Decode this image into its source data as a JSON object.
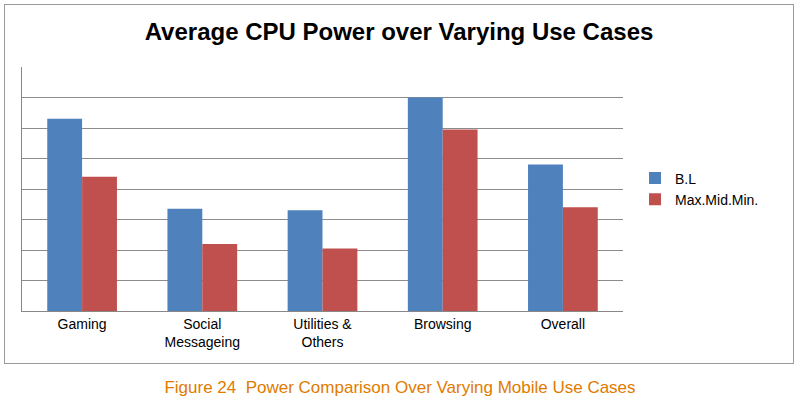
{
  "chart_data": {
    "type": "bar",
    "title": "Average CPU Power over Varying Use Cases",
    "caption": "Figure 24  Power Comparison Over Varying Mobile Use Cases",
    "categories": [
      "Gaming",
      "Social Messageing",
      "Utilities & Others",
      "Browsing",
      "Overall"
    ],
    "series": [
      {
        "name": "B.L",
        "color": "#4f81bd",
        "values": [
          6.3,
          3.35,
          3.3,
          7.0,
          4.8
        ]
      },
      {
        "name": "Max.Mid.Min.",
        "color": "#c0504d",
        "values": [
          4.4,
          2.2,
          2.05,
          5.95,
          3.4
        ]
      }
    ],
    "ylim": [
      0,
      8
    ],
    "yticks": [
      0,
      1,
      2,
      3,
      4,
      5,
      6,
      7,
      8
    ],
    "grid": true,
    "legend": "right",
    "tick_labels": "x"
  }
}
